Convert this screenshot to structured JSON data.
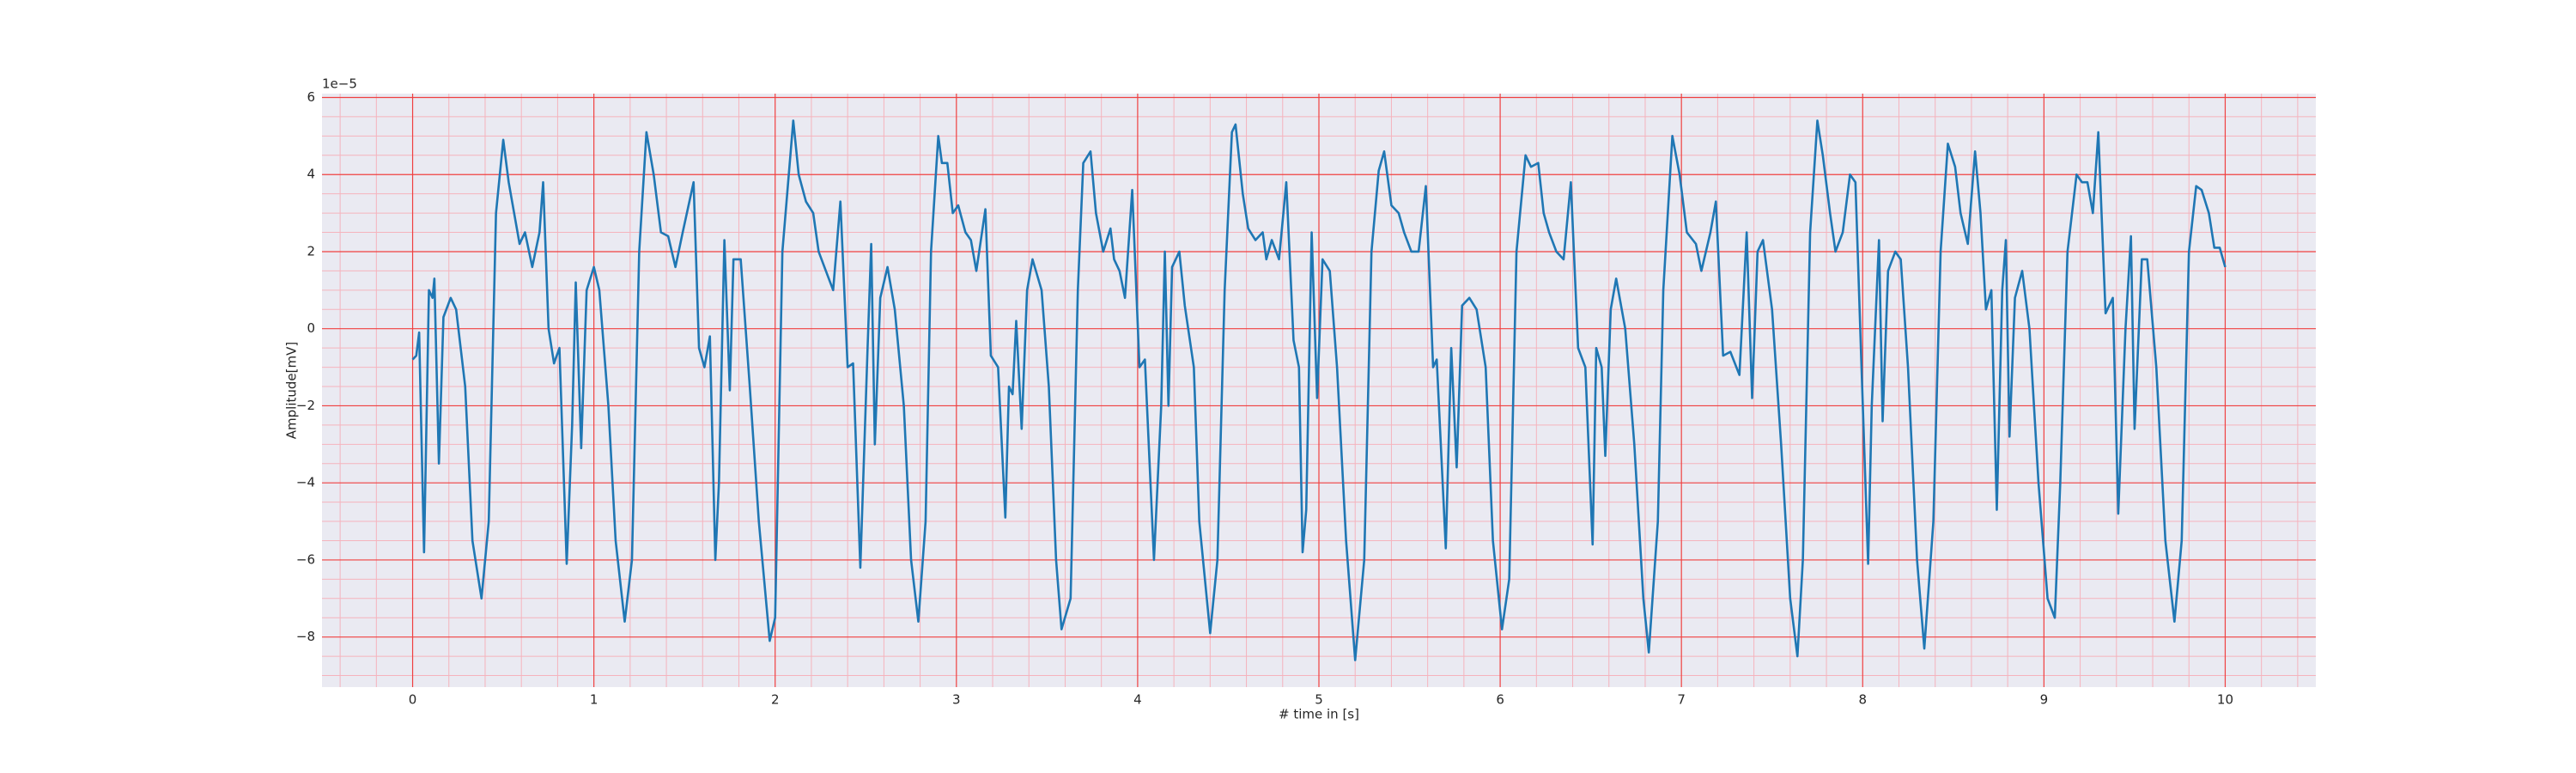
{
  "chart_data": {
    "type": "line",
    "xlabel": "# time in [s]",
    "ylabel": "Amplitude[mV]",
    "y_offset_label": "1e−5",
    "color": "#1f77b4",
    "grid": true,
    "background": "#eaeaf2",
    "grid_color": "#f04040",
    "minor_grid_color": "#f5b3bd",
    "xlim": [
      -0.5,
      10.5
    ],
    "ylim": [
      -9.3,
      6.1
    ],
    "xticks": [
      0,
      1,
      2,
      3,
      4,
      5,
      6,
      7,
      8,
      9,
      10
    ],
    "yticks": [
      {
        "value": -8,
        "label": "−8"
      },
      {
        "value": -6,
        "label": "−6"
      },
      {
        "value": -4,
        "label": "−4"
      },
      {
        "value": -2,
        "label": "−2"
      },
      0,
      2,
      4,
      6
    ],
    "xminorticks": [
      -0.4,
      -0.2,
      0.2,
      0.4,
      0.6,
      0.8,
      1.2,
      1.4,
      1.6,
      1.8,
      2.2,
      2.4,
      2.6,
      2.8,
      3.2,
      3.4,
      3.6,
      3.8,
      4.2,
      4.4,
      4.6,
      4.8,
      5.2,
      5.4,
      5.6,
      5.8,
      6.2,
      6.4,
      6.6,
      6.8,
      7.2,
      7.4,
      7.6,
      7.8,
      8.2,
      8.4,
      8.6,
      8.8,
      9.2,
      9.4,
      9.6,
      9.8,
      10.2,
      10.4
    ],
    "yminorticks": [
      -9,
      -8.5,
      -7.5,
      -7,
      -6.5,
      -5.5,
      -5,
      -4.5,
      -3.5,
      -3,
      -2.5,
      -1.5,
      -1,
      -0.5,
      0.5,
      1,
      1.5,
      2.5,
      3,
      3.5,
      4.5,
      5,
      5.5
    ],
    "x": [
      0,
      0.02,
      0.036,
      0.063,
      0.09,
      0.11,
      0.12,
      0.145,
      0.17,
      0.21,
      0.24,
      0.29,
      0.33,
      0.38,
      0.42,
      0.46,
      0.5,
      0.53,
      0.56,
      0.59,
      0.62,
      0.66,
      0.7,
      0.72,
      0.75,
      0.78,
      0.81,
      0.85,
      0.88,
      0.9,
      0.93,
      0.96,
      1.0,
      1.03,
      1.08,
      1.12,
      1.17,
      1.21,
      1.25,
      1.29,
      1.33,
      1.37,
      1.41,
      1.45,
      1.49,
      1.55,
      1.58,
      1.61,
      1.64,
      1.67,
      1.69,
      1.72,
      1.75,
      1.77,
      1.81,
      1.86,
      1.91,
      1.97,
      2.0,
      2.04,
      2.1,
      2.13,
      2.17,
      2.21,
      2.24,
      2.28,
      2.32,
      2.36,
      2.4,
      2.43,
      2.47,
      2.51,
      2.53,
      2.55,
      2.58,
      2.62,
      2.66,
      2.71,
      2.75,
      2.79,
      2.83,
      2.86,
      2.9,
      2.92,
      2.95,
      2.98,
      3.01,
      3.05,
      3.08,
      3.11,
      3.16,
      3.19,
      3.23,
      3.27,
      3.29,
      3.31,
      3.33,
      3.36,
      3.39,
      3.42,
      3.47,
      3.51,
      3.55,
      3.58,
      3.63,
      3.67,
      3.7,
      3.74,
      3.77,
      3.81,
      3.85,
      3.87,
      3.9,
      3.93,
      3.97,
      4.01,
      4.04,
      4.09,
      4.13,
      4.15,
      4.17,
      4.19,
      4.23,
      4.26,
      4.31,
      4.34,
      4.4,
      4.44,
      4.48,
      4.52,
      4.54,
      4.58,
      4.61,
      4.65,
      4.69,
      4.71,
      4.74,
      4.78,
      4.82,
      4.86,
      4.89,
      4.91,
      4.93,
      4.96,
      4.99,
      5.02,
      5.06,
      5.1,
      5.15,
      5.2,
      5.25,
      5.29,
      5.33,
      5.36,
      5.4,
      5.44,
      5.47,
      5.51,
      5.55,
      5.59,
      5.63,
      5.65,
      5.7,
      5.73,
      5.76,
      5.79,
      5.83,
      5.87,
      5.92,
      5.96,
      6.01,
      6.05,
      6.09,
      6.14,
      6.17,
      6.21,
      6.24,
      6.27,
      6.31,
      6.35,
      6.39,
      6.43,
      6.47,
      6.51,
      6.53,
      6.56,
      6.58,
      6.61,
      6.64,
      6.69,
      6.74,
      6.79,
      6.82,
      6.87,
      6.9,
      6.95,
      6.99,
      7.03,
      7.08,
      7.11,
      7.16,
      7.19,
      7.23,
      7.27,
      7.32,
      7.36,
      7.39,
      7.42,
      7.45,
      7.5,
      7.55,
      7.6,
      7.64,
      7.67,
      7.71,
      7.75,
      7.78,
      7.82,
      7.85,
      7.89,
      7.93,
      7.96,
      7.99,
      8.03,
      8.05,
      8.09,
      8.11,
      8.14,
      8.18,
      8.21,
      8.25,
      8.3,
      8.34,
      8.39,
      8.43,
      8.47,
      8.51,
      8.54,
      8.58,
      8.62,
      8.65,
      8.68,
      8.71,
      8.74,
      8.77,
      8.79,
      8.81,
      8.84,
      8.88,
      8.92,
      8.97,
      9.02,
      9.06,
      9.09,
      9.13,
      9.18,
      9.21,
      9.24,
      9.27,
      9.3,
      9.34,
      9.38,
      9.41,
      9.45,
      9.48,
      9.5,
      9.54,
      9.57,
      9.62,
      9.67,
      9.72,
      9.76,
      9.8,
      9.84,
      9.87,
      9.91,
      9.94,
      9.97,
      10.0
    ],
    "values": [
      -0.8,
      -0.7,
      -0.1,
      -5.8,
      1.0,
      0.8,
      1.3,
      -3.5,
      0.3,
      0.8,
      0.5,
      -1.5,
      -5.5,
      -7.0,
      -5.0,
      3.0,
      4.9,
      3.8,
      3.0,
      2.2,
      2.5,
      1.6,
      2.5,
      3.8,
      0,
      -0.9,
      -0.5,
      -6.1,
      -2.5,
      1.2,
      -3.1,
      1.0,
      1.6,
      1.0,
      -2.0,
      -5.5,
      -7.6,
      -6.0,
      2.0,
      5.1,
      4.0,
      2.5,
      2.4,
      1.6,
      2.5,
      3.8,
      -0.5,
      -1.0,
      -0.2,
      -6.0,
      -4.0,
      2.3,
      -1.6,
      1.8,
      1.8,
      -1.5,
      -5.0,
      -8.1,
      -7.5,
      2.0,
      5.4,
      4.0,
      3.3,
      3.0,
      2.0,
      1.5,
      1.0,
      3.3,
      -1.0,
      -0.9,
      -6.2,
      -0.5,
      2.2,
      -3.0,
      0.8,
      1.6,
      0.5,
      -2.0,
      -6.0,
      -7.6,
      -5.0,
      2.0,
      5.0,
      4.3,
      4.3,
      3.0,
      3.2,
      2.5,
      2.3,
      1.5,
      3.1,
      -0.7,
      -1.0,
      -4.9,
      -1.5,
      -1.7,
      0.2,
      -2.6,
      1.0,
      1.8,
      1.0,
      -1.5,
      -6.0,
      -7.8,
      -7.0,
      1.0,
      4.3,
      4.6,
      3.0,
      2.0,
      2.6,
      1.8,
      1.5,
      0.8,
      3.6,
      -1.0,
      -0.8,
      -6.0,
      -2.0,
      2.0,
      -2.0,
      1.6,
      2.0,
      0.6,
      -1.0,
      -5.0,
      -7.9,
      -6.0,
      1.0,
      5.1,
      5.3,
      3.5,
      2.6,
      2.3,
      2.5,
      1.8,
      2.3,
      1.8,
      3.8,
      -0.3,
      -1.0,
      -5.8,
      -4.7,
      2.5,
      -1.8,
      1.8,
      1.5,
      -1.0,
      -5.5,
      -8.6,
      -6.0,
      2.0,
      4.1,
      4.6,
      3.2,
      3.0,
      2.5,
      2.0,
      2.0,
      3.7,
      -1.0,
      -0.8,
      -5.7,
      -0.5,
      -3.6,
      0.6,
      0.8,
      0.5,
      -1.0,
      -5.5,
      -7.8,
      -6.5,
      2.0,
      4.5,
      4.2,
      4.3,
      3.0,
      2.5,
      2.0,
      1.8,
      3.8,
      -0.5,
      -1.0,
      -5.6,
      -0.5,
      -1.0,
      -3.3,
      0.5,
      1.3,
      0,
      -3.0,
      -7.0,
      -8.4,
      -5.0,
      1.0,
      5.0,
      4.0,
      2.5,
      2.2,
      1.5,
      2.5,
      3.3,
      -0.7,
      -0.6,
      -1.2,
      2.5,
      -1.8,
      2.0,
      2.3,
      0.5,
      -3.0,
      -7.0,
      -8.5,
      -6.0,
      2.5,
      5.4,
      4.5,
      3.0,
      2.0,
      2.5,
      4.0,
      3.8,
      -0.5,
      -6.1,
      -2.0,
      2.3,
      -2.4,
      1.5,
      2.0,
      1.8,
      -1.0,
      -6.0,
      -8.3,
      -5.0,
      2.0,
      4.8,
      4.2,
      3.0,
      2.2,
      4.6,
      3.0,
      0.5,
      1.0,
      -4.7,
      1.0,
      2.3,
      -2.8,
      0.8,
      1.5,
      0,
      -4.0,
      -7.0,
      -7.5,
      -4.0,
      2.0,
      4.0,
      3.8,
      3.8,
      3.0,
      5.1,
      0.4,
      0.8,
      -4.8,
      0,
      2.4,
      -2.6,
      1.8,
      1.8,
      -1.0,
      -5.5,
      -7.6,
      -5.5,
      2.0,
      3.7,
      3.6,
      3.0,
      2.1,
      2.1,
      1.6
    ]
  }
}
